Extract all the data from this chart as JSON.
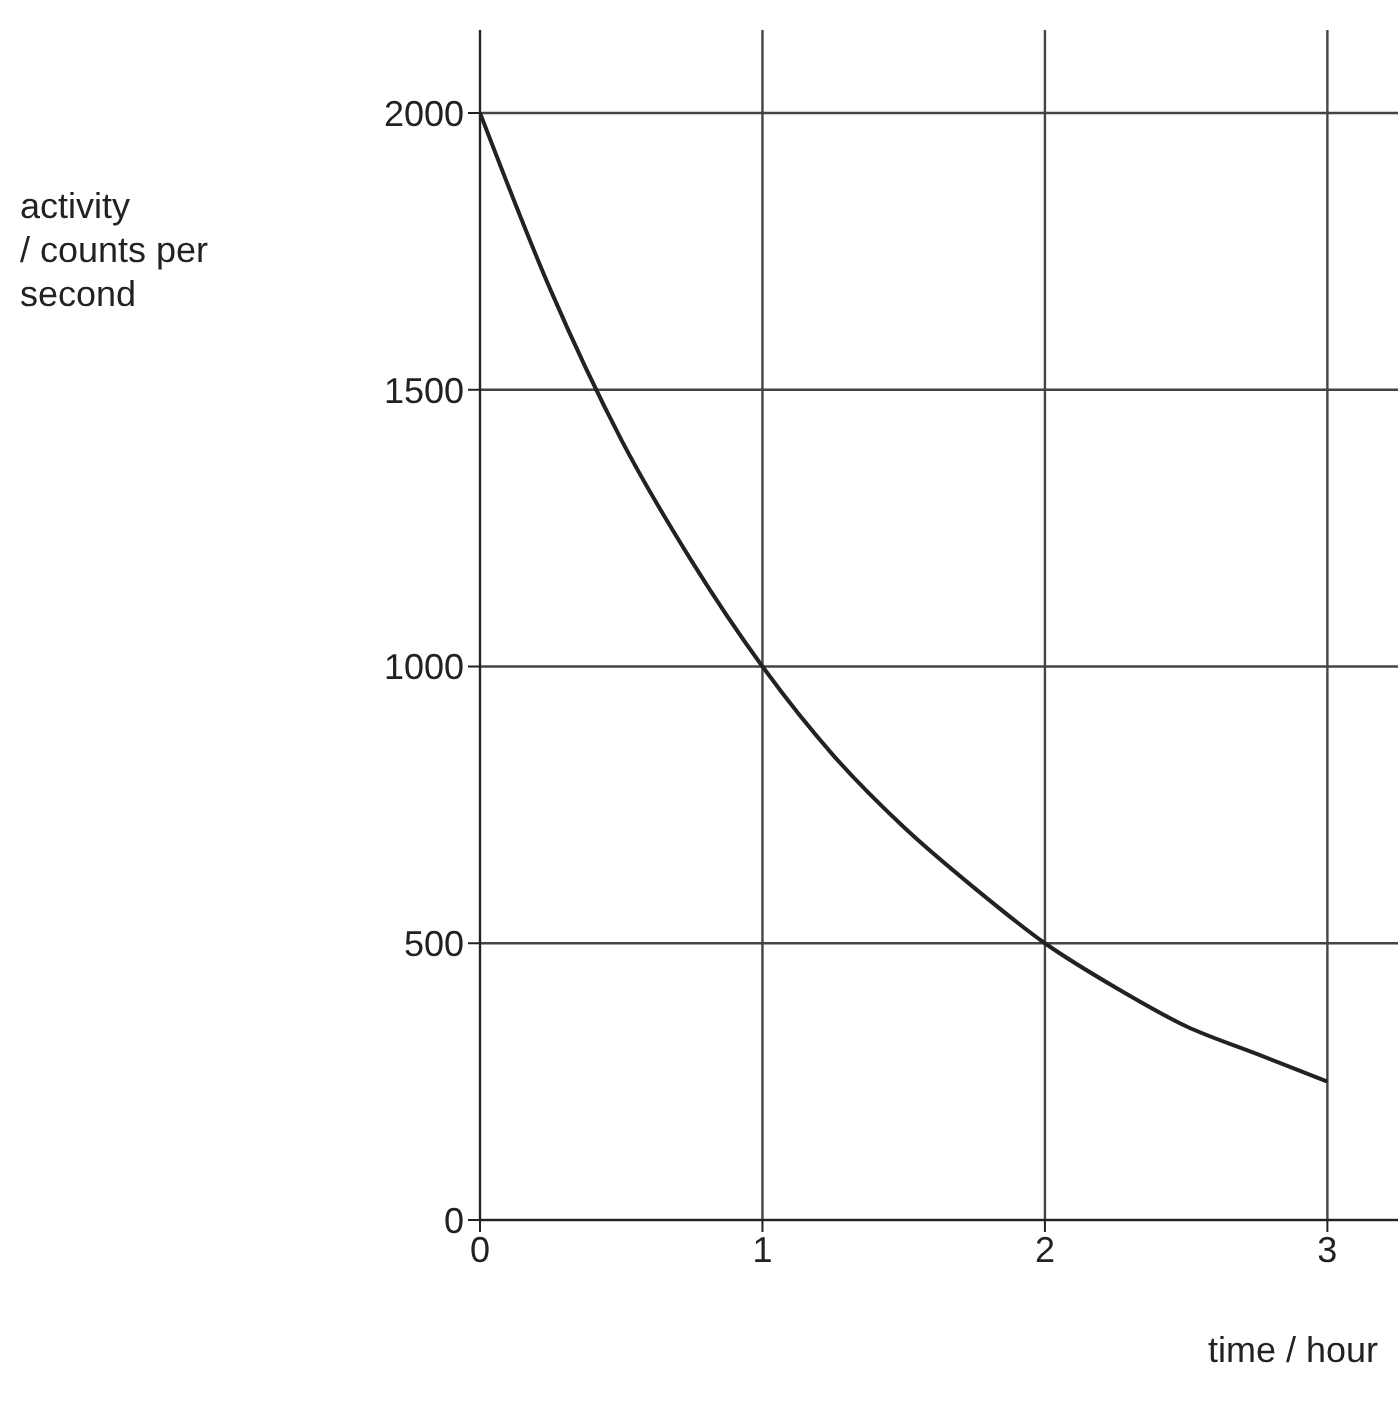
{
  "chart_data": {
    "type": "line",
    "xlabel": "time / hour",
    "ylabel": "activity\n/ counts per\nsecond",
    "x": [
      0,
      0.25,
      0.5,
      0.75,
      1,
      1.25,
      1.5,
      1.75,
      2,
      2.25,
      2.5,
      2.75,
      3
    ],
    "series": [
      {
        "color": "#222222",
        "values": [
          2000,
          1680,
          1410,
          1190,
          1000,
          840,
          710,
          600,
          500,
          420,
          350,
          300,
          250
        ]
      }
    ],
    "xlim": [
      0,
      3.25
    ],
    "xticks": [
      0,
      1,
      2,
      3
    ],
    "ylim": [
      0,
      2150
    ],
    "yticks": [
      0,
      500,
      1000,
      1500,
      2000
    ],
    "grid": true,
    "marker": "none",
    "line_style": "solid"
  }
}
